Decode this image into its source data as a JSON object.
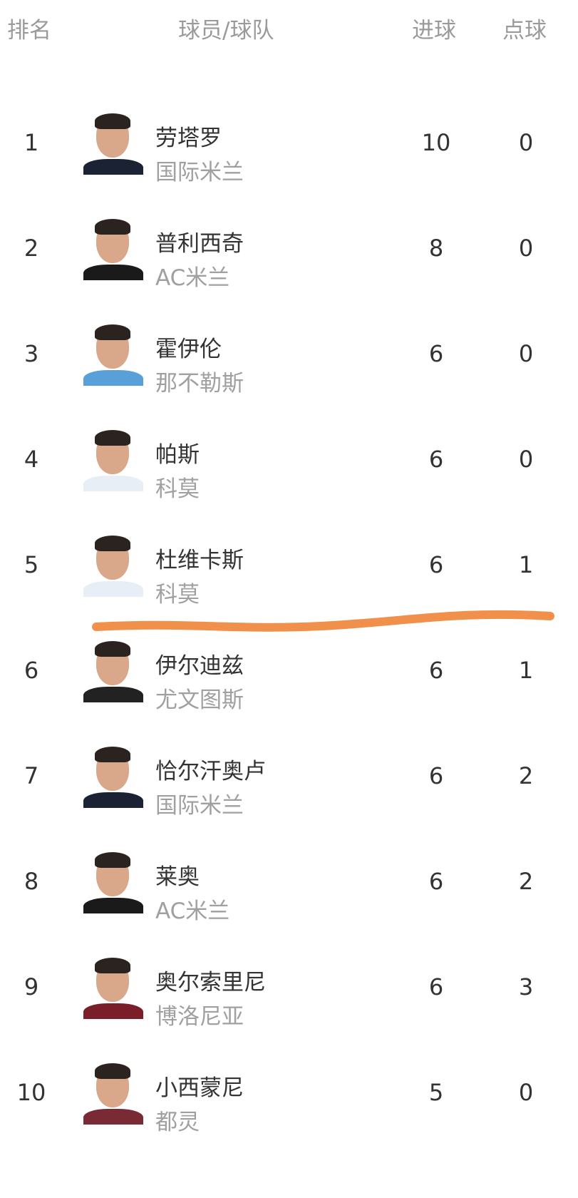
{
  "header": {
    "rank": "排名",
    "player_team": "球员/球队",
    "goals": "进球",
    "penalties": "点球"
  },
  "rows": [
    {
      "rank": "1",
      "name": "劳塔罗",
      "team": "国际米兰",
      "goals": "10",
      "penalties": "0",
      "shirt": "#1b2233"
    },
    {
      "rank": "2",
      "name": "普利西奇",
      "team": "AC米兰",
      "goals": "8",
      "penalties": "0",
      "shirt": "#1a1a1a"
    },
    {
      "rank": "3",
      "name": "霍伊伦",
      "team": "那不勒斯",
      "goals": "6",
      "penalties": "0",
      "shirt": "#5aa0d8"
    },
    {
      "rank": "4",
      "name": "帕斯",
      "team": "科莫",
      "goals": "6",
      "penalties": "0",
      "shirt": "#e8eef5"
    },
    {
      "rank": "5",
      "name": "杜维卡斯",
      "team": "科莫",
      "goals": "6",
      "penalties": "1",
      "shirt": "#e8eef5"
    },
    {
      "rank": "6",
      "name": "伊尔迪兹",
      "team": "尤文图斯",
      "goals": "6",
      "penalties": "1",
      "shirt": "#222222"
    },
    {
      "rank": "7",
      "name": "恰尔汗奥卢",
      "team": "国际米兰",
      "goals": "6",
      "penalties": "2",
      "shirt": "#1b2233"
    },
    {
      "rank": "8",
      "name": "莱奥",
      "team": "AC米兰",
      "goals": "6",
      "penalties": "2",
      "shirt": "#1a1a1a"
    },
    {
      "rank": "9",
      "name": "奥尔索里尼",
      "team": "博洛尼亚",
      "goals": "6",
      "penalties": "3",
      "shirt": "#7a1f2a"
    },
    {
      "rank": "10",
      "name": "小西蒙尼",
      "team": "都灵",
      "goals": "5",
      "penalties": "0",
      "shirt": "#7a2a35"
    }
  ],
  "annotation_color": "#f0904a"
}
